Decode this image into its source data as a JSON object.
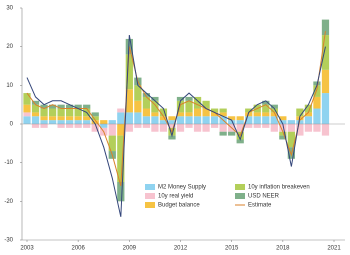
{
  "chart_data": {
    "type": "bar",
    "stacked": true,
    "x": [
      2003,
      2003.5,
      2004,
      2004.5,
      2005,
      2005.5,
      2006,
      2006.5,
      2007,
      2007.5,
      2008,
      2008.5,
      2009,
      2009.5,
      2010,
      2010.5,
      2011,
      2011.5,
      2012,
      2012.5,
      2013,
      2013.5,
      2014,
      2014.5,
      2015,
      2015.5,
      2016,
      2016.5,
      2017,
      2017.5,
      2018,
      2018.5,
      2019,
      2019.5,
      2020,
      2020.5
    ],
    "series": [
      {
        "name": "M2 Money Supply",
        "color": "#8fd3f0",
        "values": [
          2,
          2,
          1,
          1,
          1,
          1,
          1,
          1,
          0,
          -1,
          1,
          3,
          3,
          3,
          2,
          2,
          1,
          1,
          2,
          2,
          2,
          2,
          2,
          2,
          1,
          1,
          2,
          2,
          2,
          2,
          1,
          1,
          1,
          2,
          4,
          8
        ]
      },
      {
        "name": "10y real yield",
        "color": "#f7c3cf",
        "values": [
          1,
          -1,
          -1,
          0,
          -1,
          -1,
          -1,
          -1,
          -2,
          -2,
          -3,
          1,
          -2,
          -1,
          -1,
          -2,
          -2,
          -1,
          -2,
          -1,
          -2,
          -2,
          -1,
          -2,
          -2,
          -2,
          -1,
          -1,
          -1,
          -2,
          -2,
          -2,
          -3,
          -2,
          -2,
          -3
        ]
      },
      {
        "name": "Budget balance",
        "color": "#f6c343",
        "values": [
          2,
          1,
          1,
          1,
          1,
          1,
          1,
          1,
          1,
          1,
          0,
          -3,
          6,
          3,
          2,
          1,
          1,
          1,
          1,
          1,
          2,
          2,
          1,
          1,
          1,
          1,
          1,
          1,
          1,
          1,
          1,
          0,
          1,
          1,
          3,
          6
        ]
      },
      {
        "name": "10y inflation breakeven",
        "color": "#b3cf5a",
        "values": [
          3,
          2,
          2,
          2,
          2,
          2,
          2,
          2,
          1,
          0,
          -4,
          -12,
          9,
          4,
          3,
          3,
          2,
          -2,
          3,
          3,
          3,
          2,
          1,
          1,
          0,
          -2,
          1,
          2,
          2,
          1,
          -1,
          -4,
          2,
          2,
          3,
          9
        ]
      },
      {
        "name": "USD NEER",
        "color": "#7fb08a",
        "values": [
          0,
          1,
          1,
          1,
          1,
          1,
          1,
          1,
          1,
          0,
          -2,
          -5,
          4,
          2,
          1,
          1,
          0,
          -1,
          1,
          1,
          0,
          0,
          0,
          -1,
          -1,
          -1,
          0,
          0,
          1,
          1,
          -1,
          -3,
          0,
          0,
          1,
          4
        ]
      },
      {
        "name": "Estimate",
        "type": "line",
        "color": "#d9822b",
        "values": [
          8,
          5,
          4,
          5,
          4,
          4,
          4,
          4,
          1,
          -2,
          -8,
          -16,
          20,
          11,
          7,
          5,
          2,
          -2,
          5,
          6,
          5,
          4,
          3,
          1,
          -1,
          -3,
          3,
          4,
          5,
          3,
          -2,
          -8,
          1,
          3,
          9,
          24
        ]
      },
      {
        "type": "line",
        "color": "#34467a",
        "values": [
          12,
          7,
          5,
          6,
          6,
          5,
          4,
          3,
          0,
          -6,
          -14,
          -24,
          23,
          10,
          8,
          6,
          4,
          -3,
          6,
          8,
          6,
          4,
          3,
          2,
          1,
          -4,
          3,
          5,
          6,
          4,
          0,
          -11,
          2,
          5,
          10,
          20
        ]
      }
    ],
    "xlim": [
      2003,
      2021
    ],
    "xticks": [
      2003,
      2006,
      2009,
      2012,
      2015,
      2018,
      2021
    ],
    "ylim": [
      -30,
      30
    ],
    "yticks": [
      -30,
      -20,
      -10,
      0,
      10,
      20,
      30
    ]
  }
}
